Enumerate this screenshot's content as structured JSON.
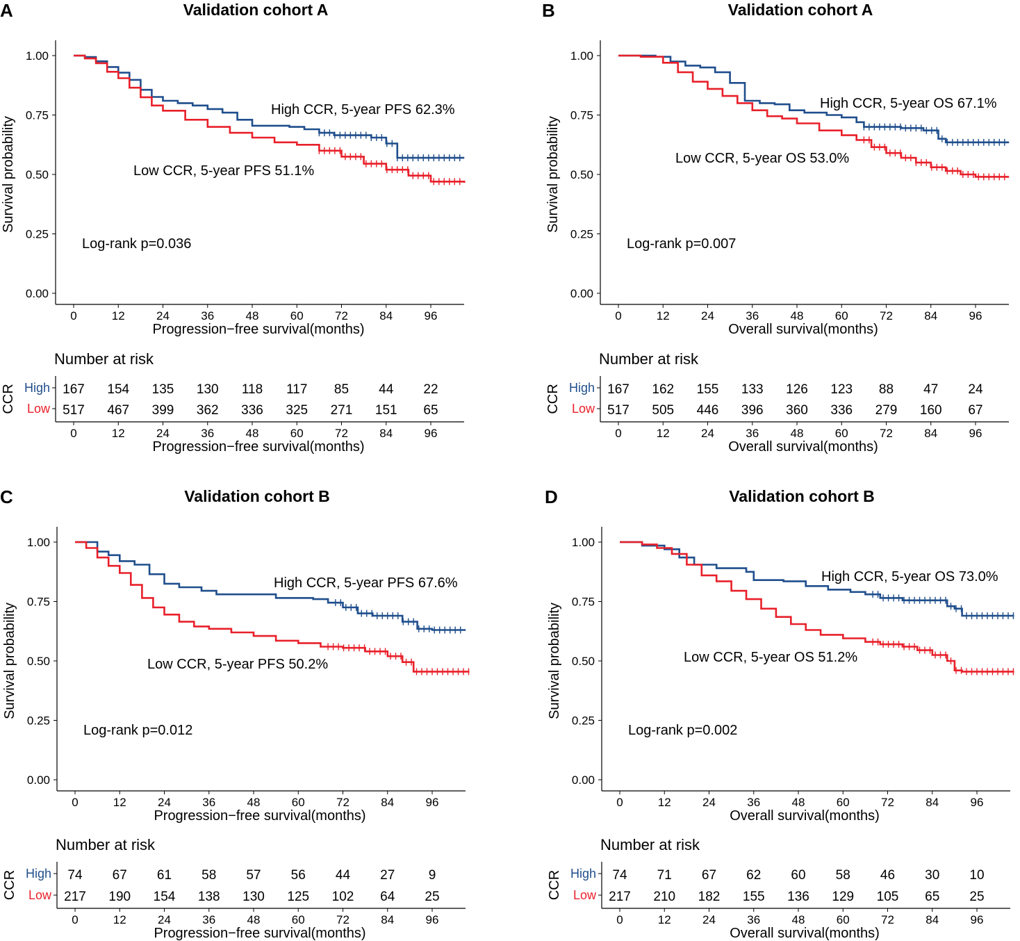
{
  "colors": {
    "high": "#1F4E8C",
    "low": "#E8202A",
    "axis": "#000000"
  },
  "chart_data": [
    {
      "panel": "A",
      "type": "line",
      "title": "Validation cohort A",
      "xlabel": "Progression−free survival(months)",
      "ylabel": "Survival probability",
      "xticks": [
        0,
        12,
        24,
        36,
        48,
        60,
        72,
        84,
        96
      ],
      "yticks": [
        "0.00",
        "0.25",
        "0.50",
        "0.75",
        "1.00"
      ],
      "xlim": [
        0,
        104
      ],
      "ylim": [
        0,
        1
      ],
      "pvalue": "Log-rank p=0.036",
      "series": [
        {
          "name": "High",
          "label": "High CCR, 5-year PFS 62.3%",
          "points": [
            [
              0,
              1
            ],
            [
              3,
              0.994
            ],
            [
              6,
              0.976
            ],
            [
              9,
              0.952
            ],
            [
              12,
              0.928
            ],
            [
              15,
              0.898
            ],
            [
              18,
              0.856
            ],
            [
              21,
              0.826
            ],
            [
              24,
              0.81
            ],
            [
              28,
              0.8
            ],
            [
              32,
              0.79
            ],
            [
              36,
              0.775
            ],
            [
              40,
              0.76
            ],
            [
              44,
              0.73
            ],
            [
              48,
              0.705
            ],
            [
              54,
              0.705
            ],
            [
              58,
              0.7
            ],
            [
              62,
              0.69
            ],
            [
              66,
              0.675
            ],
            [
              70,
              0.665
            ],
            [
              76,
              0.665
            ],
            [
              80,
              0.655
            ],
            [
              84,
              0.63
            ],
            [
              87,
              0.57
            ],
            [
              105,
              0.57
            ]
          ],
          "censor_from": 66
        },
        {
          "name": "Low",
          "label": "Low CCR, 5-year PFS 51.1%",
          "points": [
            [
              0,
              1
            ],
            [
              3,
              0.988
            ],
            [
              6,
              0.968
            ],
            [
              9,
              0.932
            ],
            [
              12,
              0.905
            ],
            [
              15,
              0.865
            ],
            [
              18,
              0.825
            ],
            [
              21,
              0.79
            ],
            [
              24,
              0.768
            ],
            [
              30,
              0.73
            ],
            [
              36,
              0.7
            ],
            [
              42,
              0.675
            ],
            [
              48,
              0.655
            ],
            [
              54,
              0.635
            ],
            [
              60,
              0.625
            ],
            [
              66,
              0.6
            ],
            [
              72,
              0.575
            ],
            [
              78,
              0.545
            ],
            [
              84,
              0.52
            ],
            [
              90,
              0.495
            ],
            [
              96,
              0.47
            ],
            [
              105,
              0.465
            ]
          ],
          "censor_from": 66
        }
      ],
      "risk_table": {
        "heading": "Number at risk",
        "group_label": "CCR",
        "rows": [
          {
            "name": "High",
            "counts": [
              167,
              154,
              135,
              130,
              118,
              117,
              85,
              44,
              22
            ]
          },
          {
            "name": "Low",
            "counts": [
              517,
              467,
              399,
              362,
              336,
              325,
              271,
              151,
              65
            ]
          }
        ]
      }
    },
    {
      "panel": "B",
      "type": "line",
      "title": "Validation cohort A",
      "xlabel": "Overall survival(months)",
      "ylabel": "Survival probability",
      "xticks": [
        0,
        12,
        24,
        36,
        48,
        60,
        72,
        84,
        96
      ],
      "yticks": [
        "0.00",
        "0.25",
        "0.50",
        "0.75",
        "1.00"
      ],
      "xlim": [
        0,
        104
      ],
      "ylim": [
        0,
        1
      ],
      "pvalue": "Log-rank p=0.007",
      "series": [
        {
          "name": "High",
          "label": "High CCR, 5-year OS 67.1%",
          "points": [
            [
              0,
              1
            ],
            [
              6,
              1
            ],
            [
              10,
              0.995
            ],
            [
              14,
              0.975
            ],
            [
              18,
              0.958
            ],
            [
              22,
              0.95
            ],
            [
              26,
              0.93
            ],
            [
              30,
              0.885
            ],
            [
              34,
              0.81
            ],
            [
              38,
              0.8
            ],
            [
              42,
              0.795
            ],
            [
              46,
              0.77
            ],
            [
              50,
              0.76
            ],
            [
              56,
              0.75
            ],
            [
              60,
              0.74
            ],
            [
              64,
              0.72
            ],
            [
              66,
              0.7
            ],
            [
              72,
              0.7
            ],
            [
              76,
              0.695
            ],
            [
              82,
              0.685
            ],
            [
              86,
              0.65
            ],
            [
              88,
              0.635
            ],
            [
              105,
              0.635
            ]
          ],
          "censor_from": 66
        },
        {
          "name": "Low",
          "label": "Low CCR, 5-year OS 53.0%",
          "points": [
            [
              0,
              1
            ],
            [
              6,
              0.995
            ],
            [
              12,
              0.97
            ],
            [
              16,
              0.93
            ],
            [
              20,
              0.89
            ],
            [
              24,
              0.86
            ],
            [
              28,
              0.83
            ],
            [
              32,
              0.8
            ],
            [
              36,
              0.77
            ],
            [
              40,
              0.745
            ],
            [
              44,
              0.735
            ],
            [
              48,
              0.715
            ],
            [
              54,
              0.685
            ],
            [
              60,
              0.665
            ],
            [
              64,
              0.645
            ],
            [
              68,
              0.615
            ],
            [
              72,
              0.59
            ],
            [
              76,
              0.57
            ],
            [
              80,
              0.55
            ],
            [
              84,
              0.53
            ],
            [
              88,
              0.515
            ],
            [
              92,
              0.5
            ],
            [
              96,
              0.49
            ],
            [
              105,
              0.49
            ]
          ],
          "censor_from": 66
        }
      ],
      "risk_table": {
        "heading": "Number at risk",
        "group_label": "CCR",
        "rows": [
          {
            "name": "High",
            "counts": [
              167,
              162,
              155,
              133,
              126,
              123,
              88,
              47,
              24
            ]
          },
          {
            "name": "Low",
            "counts": [
              517,
              505,
              446,
              396,
              360,
              336,
              279,
              160,
              67
            ]
          }
        ]
      }
    },
    {
      "panel": "C",
      "type": "line",
      "title": "Validation cohort B",
      "xlabel": "Progression−free survival(months)",
      "ylabel": "Survival probability",
      "xticks": [
        0,
        12,
        24,
        36,
        48,
        60,
        72,
        84,
        96
      ],
      "yticks": [
        "0.00",
        "0.25",
        "0.50",
        "0.75",
        "1.00"
      ],
      "xlim": [
        0,
        104
      ],
      "ylim": [
        0,
        1
      ],
      "pvalue": "Log-rank p=0.012",
      "series": [
        {
          "name": "High",
          "label": "High CCR, 5-year PFS 67.6%",
          "points": [
            [
              0,
              1
            ],
            [
              4,
              1
            ],
            [
              6,
              0.96
            ],
            [
              9,
              0.945
            ],
            [
              12,
              0.92
            ],
            [
              16,
              0.905
            ],
            [
              20,
              0.865
            ],
            [
              24,
              0.825
            ],
            [
              28,
              0.81
            ],
            [
              34,
              0.795
            ],
            [
              38,
              0.78
            ],
            [
              48,
              0.78
            ],
            [
              54,
              0.765
            ],
            [
              64,
              0.76
            ],
            [
              68,
              0.745
            ],
            [
              72,
              0.725
            ],
            [
              76,
              0.7
            ],
            [
              80,
              0.69
            ],
            [
              84,
              0.69
            ],
            [
              88,
              0.665
            ],
            [
              92,
              0.635
            ],
            [
              96,
              0.63
            ],
            [
              105,
              0.63
            ]
          ],
          "censor_from": 70
        },
        {
          "name": "Low",
          "label": "Low CCR, 5-year PFS 50.2%",
          "points": [
            [
              0,
              1
            ],
            [
              3,
              0.975
            ],
            [
              6,
              0.935
            ],
            [
              9,
              0.9
            ],
            [
              12,
              0.87
            ],
            [
              15,
              0.82
            ],
            [
              18,
              0.765
            ],
            [
              21,
              0.725
            ],
            [
              24,
              0.695
            ],
            [
              28,
              0.665
            ],
            [
              32,
              0.645
            ],
            [
              36,
              0.635
            ],
            [
              42,
              0.62
            ],
            [
              48,
              0.605
            ],
            [
              54,
              0.585
            ],
            [
              60,
              0.575
            ],
            [
              66,
              0.56
            ],
            [
              72,
              0.555
            ],
            [
              78,
              0.54
            ],
            [
              84,
              0.52
            ],
            [
              88,
              0.495
            ],
            [
              91,
              0.455
            ],
            [
              106,
              0.455
            ]
          ],
          "censor_from": 68
        }
      ],
      "risk_table": {
        "heading": "Number at risk",
        "group_label": "CCR",
        "rows": [
          {
            "name": "High",
            "counts": [
              74,
              67,
              61,
              58,
              57,
              56,
              44,
              27,
              9
            ]
          },
          {
            "name": "Low",
            "counts": [
              217,
              190,
              154,
              138,
              130,
              125,
              102,
              64,
              25
            ]
          }
        ]
      }
    },
    {
      "panel": "D",
      "type": "line",
      "title": "Validation cohort B",
      "xlabel": "Overall survival(months)",
      "ylabel": "Survival probability",
      "xticks": [
        0,
        12,
        24,
        36,
        48,
        60,
        72,
        84,
        96
      ],
      "yticks": [
        "0.00",
        "0.25",
        "0.50",
        "0.75",
        "1.00"
      ],
      "xlim": [
        0,
        104
      ],
      "ylim": [
        0,
        1
      ],
      "pvalue": "Log-rank p=0.002",
      "series": [
        {
          "name": "High",
          "label": "High CCR, 5-year OS 73.0%",
          "points": [
            [
              0,
              1
            ],
            [
              6,
              0.985
            ],
            [
              12,
              0.97
            ],
            [
              16,
              0.935
            ],
            [
              20,
              0.905
            ],
            [
              26,
              0.89
            ],
            [
              34,
              0.875
            ],
            [
              36,
              0.84
            ],
            [
              44,
              0.835
            ],
            [
              50,
              0.815
            ],
            [
              56,
              0.8
            ],
            [
              62,
              0.79
            ],
            [
              66,
              0.78
            ],
            [
              70,
              0.765
            ],
            [
              76,
              0.755
            ],
            [
              86,
              0.755
            ],
            [
              88,
              0.73
            ],
            [
              90,
              0.72
            ],
            [
              92,
              0.69
            ],
            [
              106,
              0.69
            ]
          ],
          "censor_from": 68
        },
        {
          "name": "Low",
          "label": "Low CCR, 5-year OS 51.2%",
          "points": [
            [
              0,
              1
            ],
            [
              6,
              0.99
            ],
            [
              10,
              0.975
            ],
            [
              14,
              0.95
            ],
            [
              18,
              0.905
            ],
            [
              22,
              0.86
            ],
            [
              26,
              0.835
            ],
            [
              30,
              0.795
            ],
            [
              34,
              0.76
            ],
            [
              38,
              0.72
            ],
            [
              42,
              0.685
            ],
            [
              46,
              0.655
            ],
            [
              50,
              0.63
            ],
            [
              54,
              0.61
            ],
            [
              60,
              0.595
            ],
            [
              66,
              0.58
            ],
            [
              70,
              0.57
            ],
            [
              76,
              0.56
            ],
            [
              80,
              0.545
            ],
            [
              84,
              0.525
            ],
            [
              88,
              0.5
            ],
            [
              90,
              0.46
            ],
            [
              92,
              0.455
            ],
            [
              106,
              0.455
            ]
          ],
          "censor_from": 68
        }
      ],
      "risk_table": {
        "heading": "Number at risk",
        "group_label": "CCR",
        "rows": [
          {
            "name": "High",
            "counts": [
              74,
              71,
              67,
              62,
              60,
              58,
              46,
              30,
              10
            ]
          },
          {
            "name": "Low",
            "counts": [
              217,
              210,
              182,
              155,
              136,
              129,
              105,
              65,
              25
            ]
          }
        ]
      }
    }
  ]
}
